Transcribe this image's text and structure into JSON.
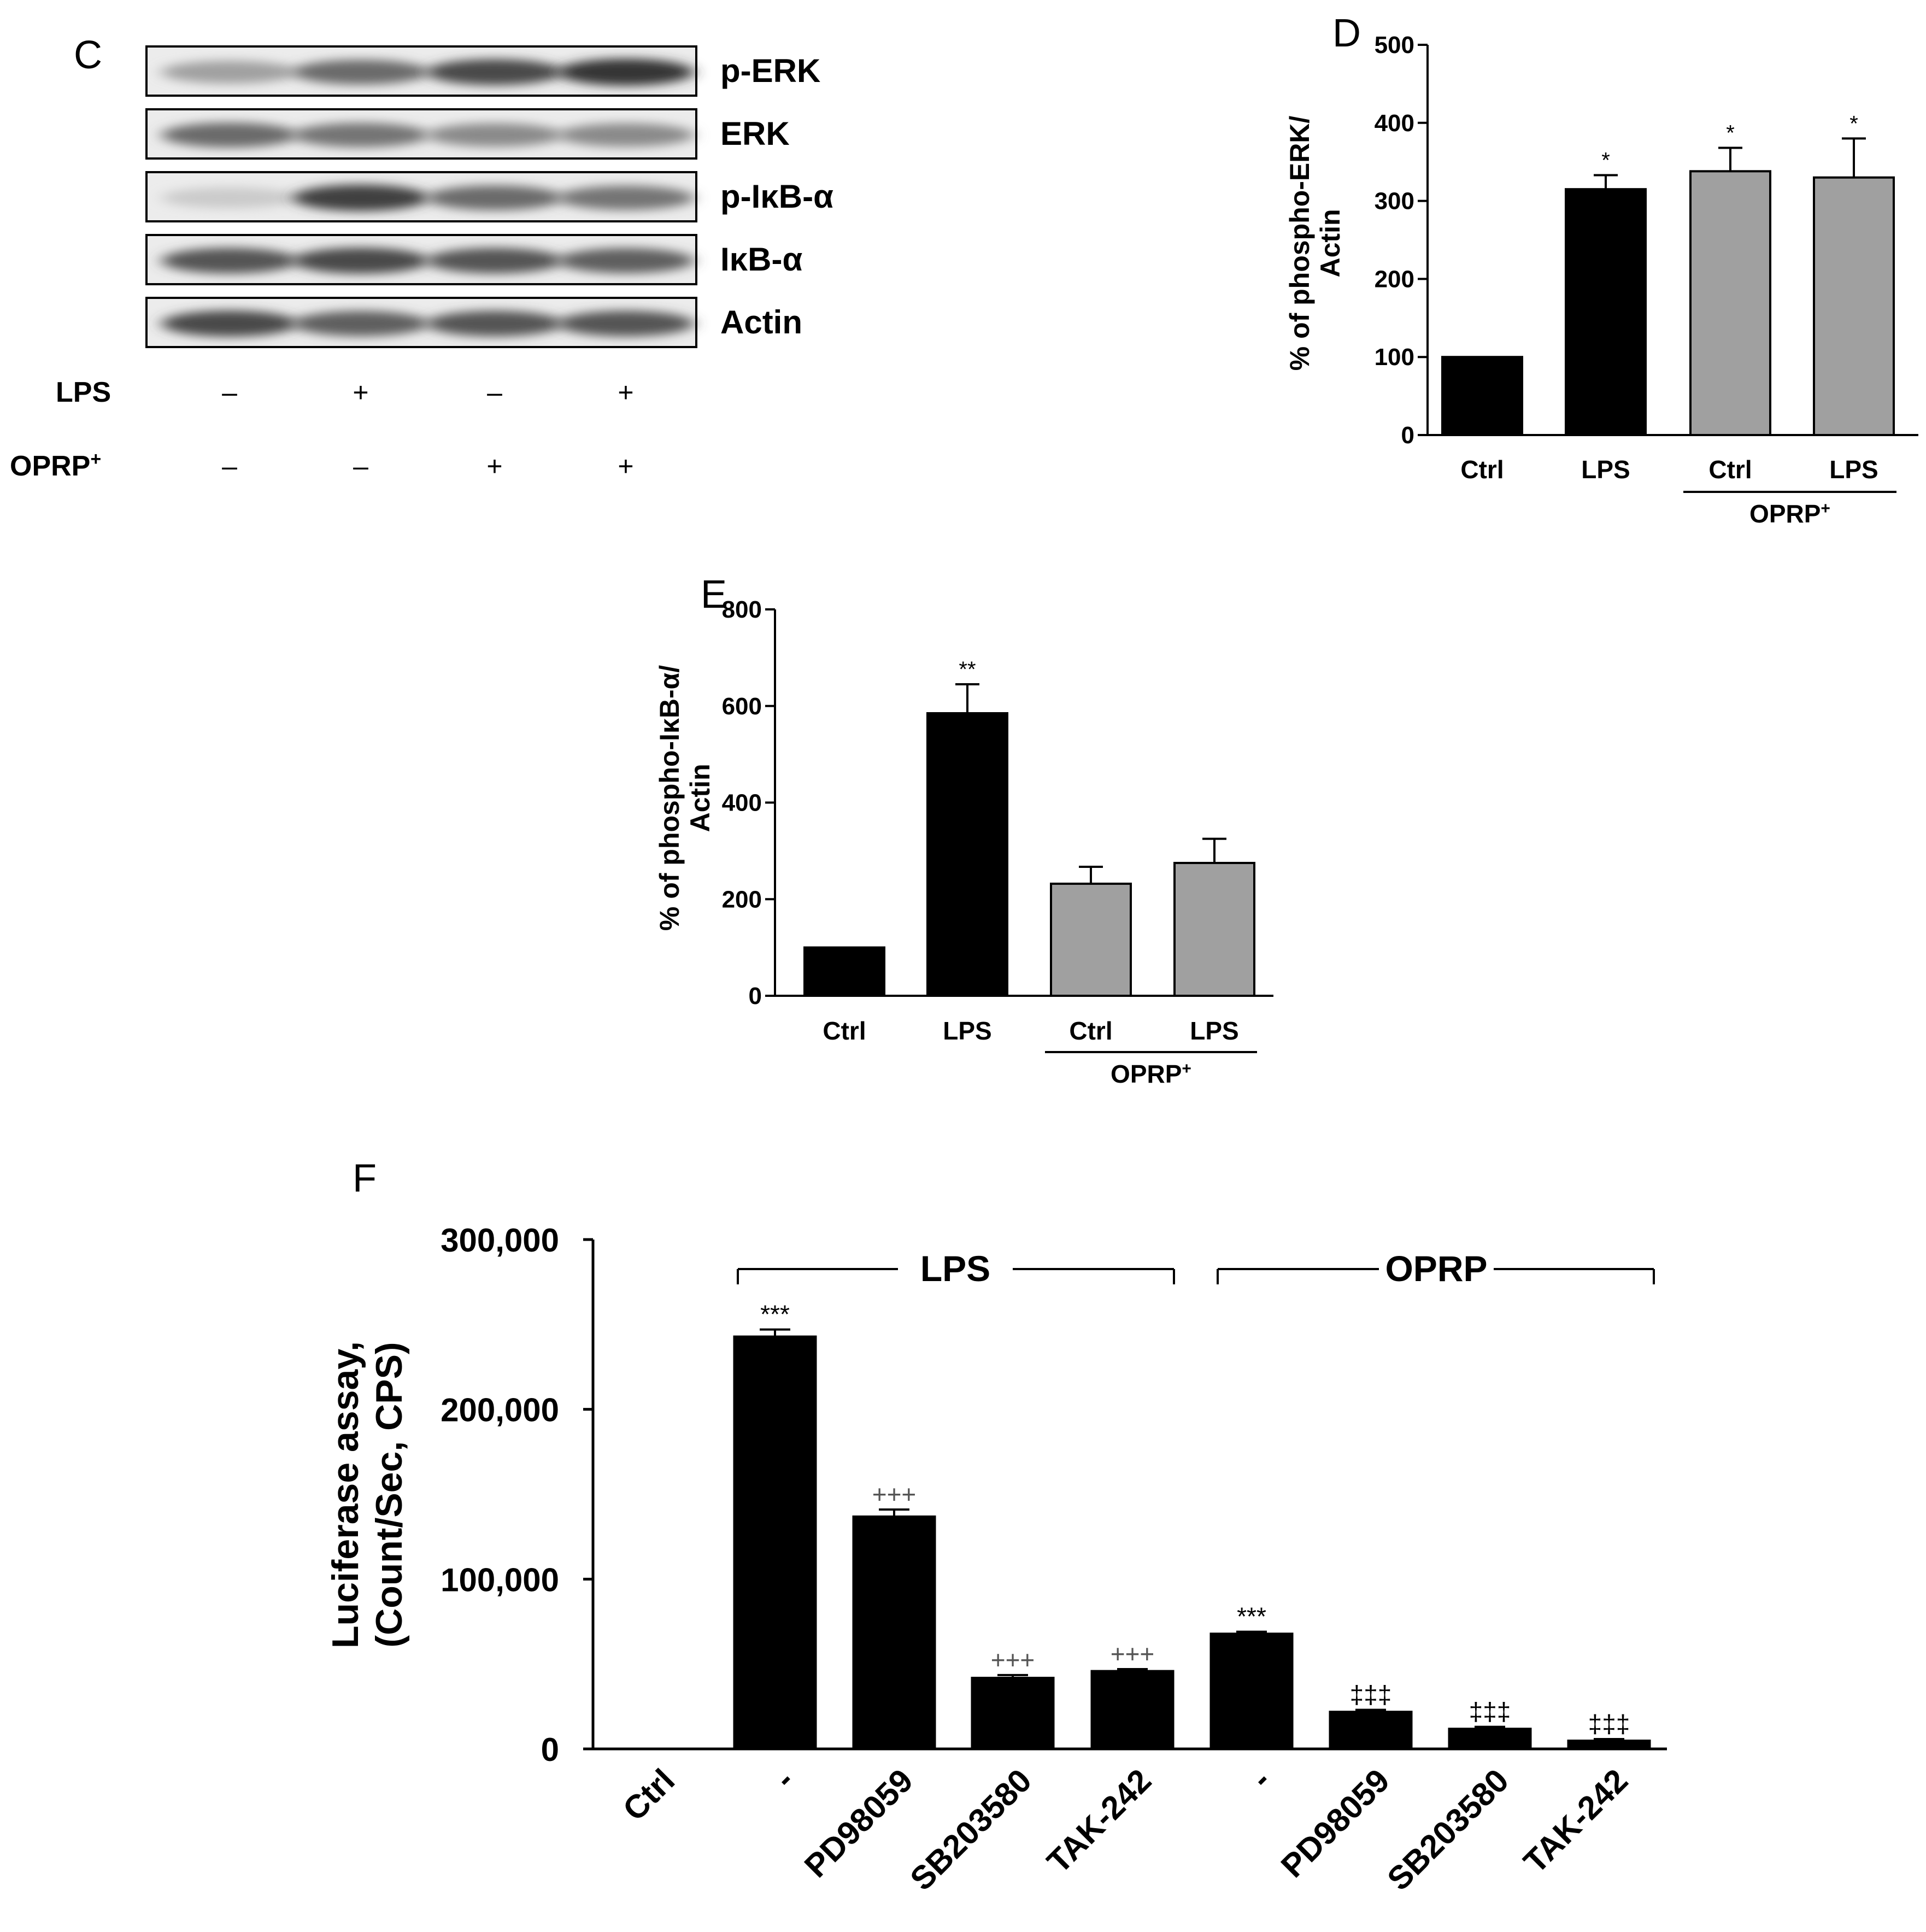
{
  "panel_c": {
    "letter": "C",
    "bands": [
      {
        "label": "p-ERK",
        "intensities": [
          0.35,
          0.6,
          0.75,
          0.85
        ]
      },
      {
        "label": "ERK",
        "intensities": [
          0.6,
          0.55,
          0.45,
          0.45
        ]
      },
      {
        "label": "p-IκB-α",
        "intensities": [
          0.15,
          0.8,
          0.6,
          0.55
        ]
      },
      {
        "label": "IκB-α",
        "intensities": [
          0.7,
          0.75,
          0.7,
          0.65
        ]
      },
      {
        "label": "Actin",
        "intensities": [
          0.75,
          0.65,
          0.7,
          0.7
        ]
      }
    ],
    "treatments": [
      {
        "name": "LPS",
        "signs": [
          "–",
          "+",
          "–",
          "+"
        ]
      },
      {
        "name": "OPRP",
        "sup": "+",
        "signs": [
          "–",
          "–",
          "+",
          "+"
        ]
      }
    ]
  },
  "chart_data": [
    {
      "id": "D",
      "type": "bar",
      "panel_letter": "D",
      "ylabel_line1": "% of phospho-ERK/",
      "ylabel_line2": "Actin",
      "categories": [
        "Ctrl",
        "LPS",
        "Ctrl",
        "LPS"
      ],
      "group_label": "OPRP",
      "group_sup": "+",
      "ylim": [
        0,
        500
      ],
      "yticks": [
        0,
        100,
        200,
        300,
        400,
        500
      ],
      "values": [
        100,
        315,
        338,
        330
      ],
      "errors": [
        0,
        18,
        30,
        50
      ],
      "significance": [
        "",
        "*",
        "*",
        "*"
      ],
      "colors": [
        "#000000",
        "#000000",
        "#a0a0a0",
        "#a0a0a0"
      ]
    },
    {
      "id": "E",
      "type": "bar",
      "panel_letter": "E",
      "ylabel_line1": "% of phospho-IκB-α/",
      "ylabel_line2": "Actin",
      "categories": [
        "Ctrl",
        "LPS",
        "Ctrl",
        "LPS"
      ],
      "group_label": "OPRP",
      "group_sup": "+",
      "ylim": [
        0,
        800
      ],
      "yticks": [
        0,
        200,
        400,
        600,
        800
      ],
      "values": [
        100,
        585,
        232,
        275
      ],
      "errors": [
        0,
        60,
        35,
        50
      ],
      "significance": [
        "",
        "**",
        "",
        ""
      ],
      "colors": [
        "#000000",
        "#000000",
        "#a0a0a0",
        "#a0a0a0"
      ]
    },
    {
      "id": "F",
      "type": "bar",
      "panel_letter": "F",
      "ylabel_line1": "Luciferase assay,",
      "ylabel_line2": "(Count/Sec,  CPS)",
      "categories": [
        "Ctrl",
        "-",
        "PD98059",
        "SB203580",
        "TAK-242",
        "-",
        "PD98059",
        "SB203580",
        "TAK-242"
      ],
      "ylim": [
        0,
        300000
      ],
      "yticks": [
        0,
        100000,
        200000,
        300000
      ],
      "ytick_labels": [
        "0",
        "100,000",
        "200,000",
        "300,000"
      ],
      "values": [
        0,
        243000,
        137000,
        42000,
        46000,
        68000,
        22000,
        12000,
        5000
      ],
      "errors": [
        0,
        4000,
        4000,
        1500,
        1000,
        1000,
        1000,
        1000,
        800
      ],
      "significance": [
        "",
        "***",
        "+++",
        "+++",
        "+++",
        "***",
        "‡‡‡",
        "‡‡‡",
        "‡‡‡"
      ],
      "groups": [
        {
          "label": "LPS",
          "from": 1,
          "to": 4
        },
        {
          "label": "OPRP",
          "from": 5,
          "to": 8
        }
      ],
      "colors": [
        "#000000"
      ]
    }
  ]
}
